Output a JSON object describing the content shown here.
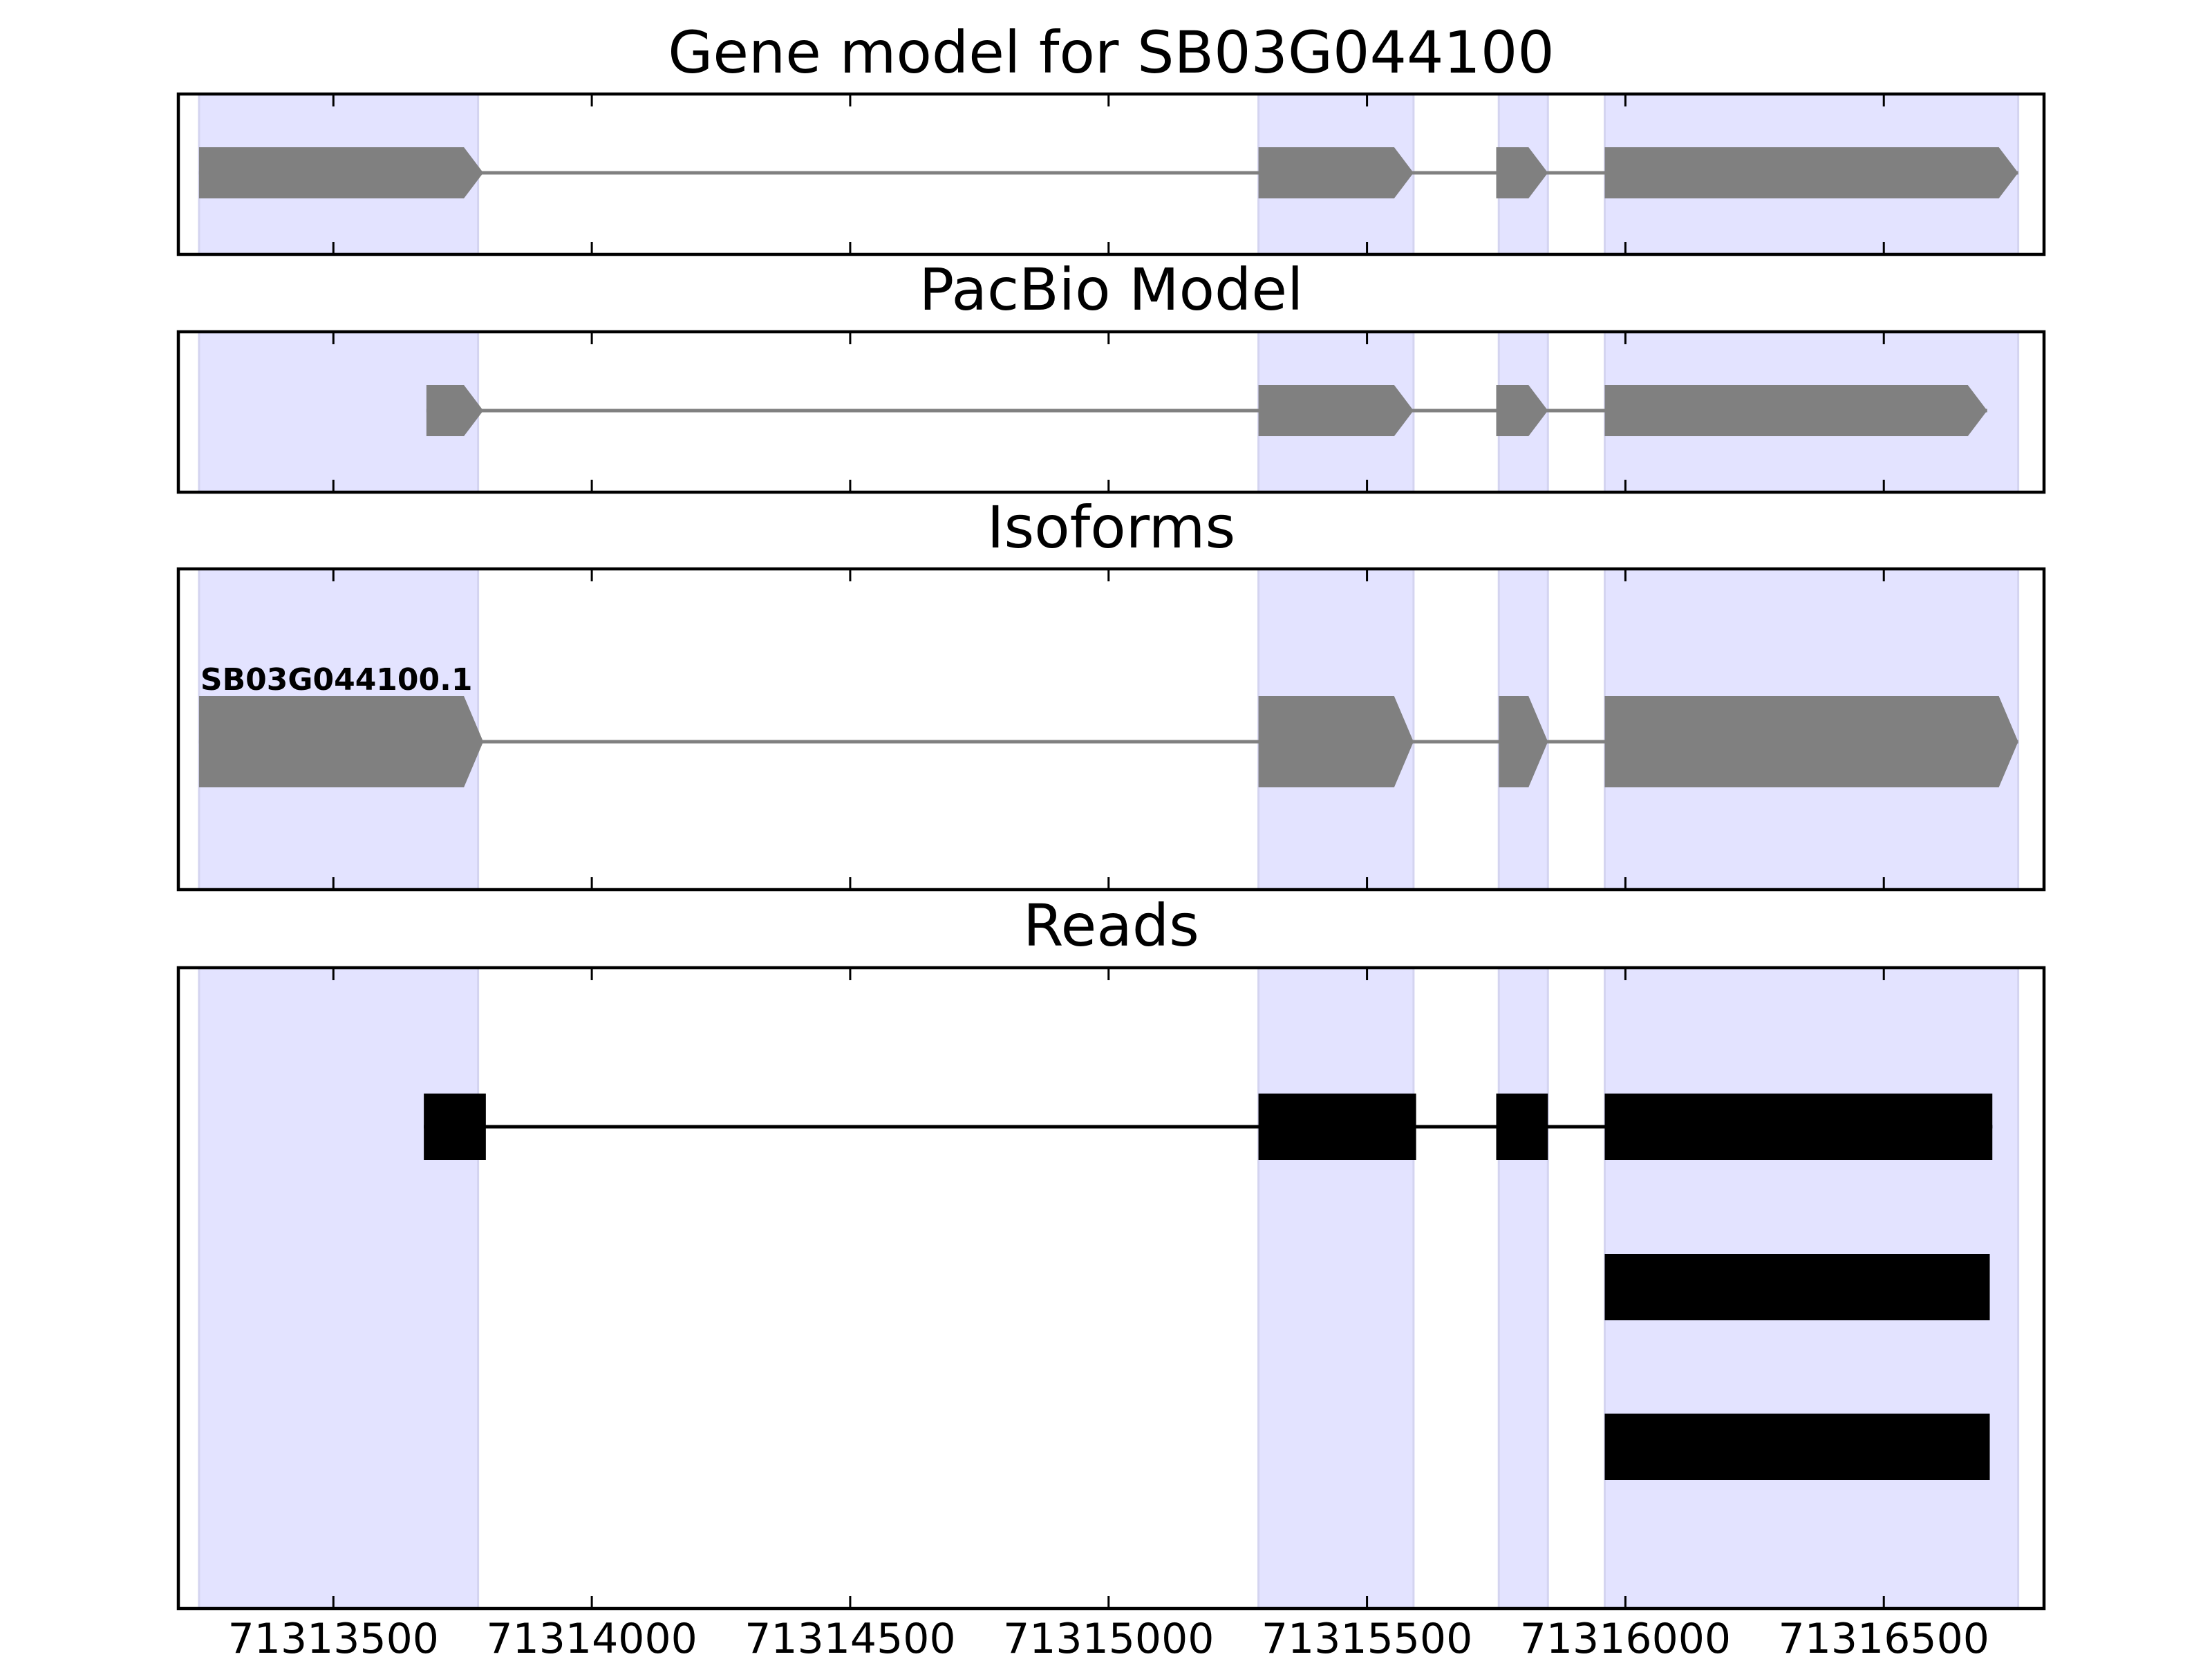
{
  "chart_data": [
    {
      "type": "gene_model",
      "title": "Gene model for SB03G044100",
      "xlim": [
        71313200,
        71316810
      ],
      "exons": [
        [
          71313240,
          71313790
        ],
        [
          71315290,
          71315590
        ],
        [
          71315750,
          71315850
        ],
        [
          71315960,
          71316760
        ]
      ],
      "shaded_regions": [
        [
          71313240,
          71313780
        ],
        [
          71315290,
          71315590
        ],
        [
          71315755,
          71315850
        ],
        [
          71315960,
          71316760
        ]
      ],
      "strand": "+",
      "color": "#808080",
      "shade_color": "#e3e3ff"
    },
    {
      "type": "gene_model",
      "title": "PacBio Model",
      "xlim": [
        71313200,
        71316810
      ],
      "exons": [
        [
          71313680,
          71313790
        ],
        [
          71315290,
          71315590
        ],
        [
          71315750,
          71315850
        ],
        [
          71315960,
          71316700
        ]
      ],
      "shaded_regions": [
        [
          71313240,
          71313780
        ],
        [
          71315290,
          71315590
        ],
        [
          71315755,
          71315850
        ],
        [
          71315960,
          71316760
        ]
      ],
      "strand": "+",
      "color": "#808080",
      "shade_color": "#e3e3ff"
    },
    {
      "type": "gene_model",
      "title": "Isoforms",
      "xlim": [
        71313200,
        71316810
      ],
      "isoforms": [
        {
          "name": "SB03G044100.1",
          "exons": [
            [
              71313240,
              71313790
            ],
            [
              71315290,
              71315590
            ],
            [
              71315755,
              71315850
            ],
            [
              71315960,
              71316760
            ]
          ]
        }
      ],
      "shaded_regions": [
        [
          71313240,
          71313780
        ],
        [
          71315290,
          71315590
        ],
        [
          71315755,
          71315850
        ],
        [
          71315960,
          71316760
        ]
      ],
      "strand": "+",
      "color": "#808080",
      "shade_color": "#e3e3ff"
    },
    {
      "type": "reads",
      "title": "Reads",
      "xlim": [
        71313200,
        71316810
      ],
      "reads": [
        {
          "exons": [
            [
              71313675,
              71313795
            ],
            [
              71315290,
              71315595
            ],
            [
              71315750,
              71315850
            ],
            [
              71315960,
              71316710
            ]
          ]
        },
        {
          "exons": [
            [
              71315960,
              71316705
            ]
          ]
        },
        {
          "exons": [
            [
              71315960,
              71316705
            ]
          ]
        }
      ],
      "shaded_regions": [
        [
          71313240,
          71313780
        ],
        [
          71315290,
          71315590
        ],
        [
          71315755,
          71315850
        ],
        [
          71315960,
          71316760
        ]
      ],
      "color": "#000000",
      "shade_color": "#e3e3ff"
    }
  ],
  "x_ticks": [
    71313500,
    71314000,
    71314500,
    71315000,
    71315500,
    71316000,
    71316500
  ],
  "x_tick_labels": [
    "71313500",
    "71314000",
    "71314500",
    "71315000",
    "71315500",
    "71316000",
    "71316500"
  ]
}
